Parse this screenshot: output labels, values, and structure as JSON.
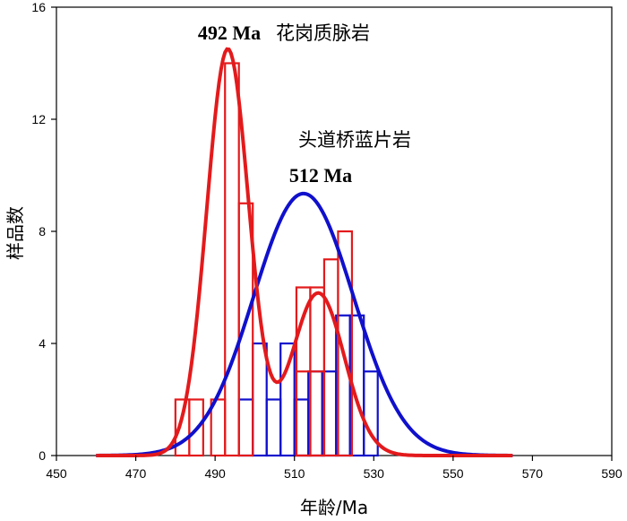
{
  "chart_data": {
    "type": "bar",
    "title": "",
    "xlabel": "年龄/Ma",
    "ylabel": "样品数",
    "xlim": [
      450,
      590
    ],
    "ylim": [
      0,
      16
    ],
    "xticks": [
      "450",
      "470",
      "490",
      "510",
      "530",
      "550",
      "570",
      "590"
    ],
    "yticks": [
      "0",
      "4",
      "8",
      "12",
      "16"
    ],
    "bin_width": 3.5,
    "series": [
      {
        "name": "花岗质脉岩",
        "color": "#e31a1c",
        "peak_label": "492 Ma",
        "bins": [
          {
            "x0": 480,
            "value": 2
          },
          {
            "x0": 483.5,
            "value": 2
          },
          {
            "x0": 489,
            "value": 2
          },
          {
            "x0": 492.5,
            "value": 14
          },
          {
            "x0": 496,
            "value": 9
          },
          {
            "x0": 510.5,
            "value": 3
          },
          {
            "x0": 514,
            "value": 6
          },
          {
            "x0": 510.5,
            "value": 6
          },
          {
            "x0": 514,
            "value": 3
          },
          {
            "x0": 517.5,
            "value": 7
          },
          {
            "x0": 521,
            "value": 8
          }
        ],
        "curve": {
          "components": [
            {
              "mu": 493.2,
              "sigma": 5.3,
              "amp": 14.5
            },
            {
              "mu": 516.0,
              "sigma": 6.6,
              "amp": 5.8
            }
          ]
        }
      },
      {
        "name": "头道桥蓝片岩",
        "color": "#1010cc",
        "peak_label": "512 Ma",
        "bins": [
          {
            "x0": 496,
            "value": 2
          },
          {
            "x0": 499.5,
            "value": 4
          },
          {
            "x0": 503,
            "value": 2
          },
          {
            "x0": 506.5,
            "value": 4
          },
          {
            "x0": 510,
            "value": 2
          },
          {
            "x0": 513.5,
            "value": 3
          },
          {
            "x0": 517,
            "value": 3
          },
          {
            "x0": 520.5,
            "value": 5
          },
          {
            "x0": 524,
            "value": 5
          },
          {
            "x0": 527.5,
            "value": 3
          }
        ],
        "curve": {
          "components": [
            {
              "mu": 512.3,
              "sigma": 12.6,
              "amp": 9.35
            }
          ]
        }
      }
    ]
  }
}
